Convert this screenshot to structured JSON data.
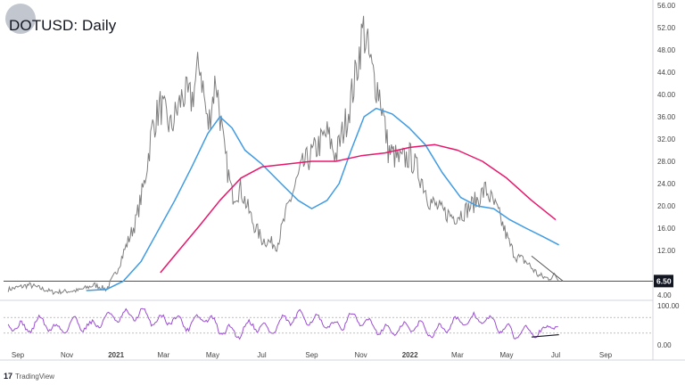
{
  "header": {
    "title": "DOTUSD: Daily"
  },
  "footer": {
    "brand": "TradingView",
    "brand_icon": "tradingview-logo-icon"
  },
  "colors": {
    "price": "#7f7f7f",
    "sma_fast": "#3f9be4",
    "sma_slow": "#e8176b",
    "rsi": "#9c4fd3",
    "trendline": "#555555",
    "current_price_badge": "#131722"
  },
  "chart_data": [
    {
      "type": "line",
      "title": "DOTUSD: Daily",
      "x_tick_labels": [
        "Sep",
        "Nov",
        "2021",
        "Mar",
        "May",
        "Jul",
        "Sep",
        "Nov",
        "2022",
        "Mar",
        "May",
        "Jul",
        "Sep"
      ],
      "y_tick_labels": [
        "4.00",
        "8.00",
        "12.00",
        "16.00",
        "20.00",
        "24.00",
        "28.00",
        "32.00",
        "36.00",
        "40.00",
        "44.00",
        "48.00",
        "52.00",
        "56.00"
      ],
      "ylim": [
        4,
        56
      ],
      "grid": false,
      "current_price_label": "6.50",
      "horizontal_line": 6.5,
      "series": [
        {
          "name": "",
          "x": [
            "2020-08-20",
            "2020-09-15",
            "2020-10-15",
            "2020-11-15",
            "2020-12-05",
            "2020-12-20",
            "2021-01-01",
            "2021-01-10",
            "2021-01-25",
            "2021-02-05",
            "2021-02-15",
            "2021-02-25",
            "2021-03-10",
            "2021-03-25",
            "2021-04-05",
            "2021-04-15",
            "2021-04-25",
            "2021-05-05",
            "2021-05-15",
            "2021-05-25",
            "2021-06-05",
            "2021-06-20",
            "2021-07-01",
            "2021-07-20",
            "2021-08-05",
            "2021-08-20",
            "2021-09-05",
            "2021-09-20",
            "2021-10-01",
            "2021-10-15",
            "2021-10-25",
            "2021-11-04",
            "2021-11-15",
            "2021-11-25",
            "2021-12-05",
            "2021-12-20",
            "2022-01-01",
            "2022-01-15",
            "2022-01-25",
            "2022-02-10",
            "2022-02-25",
            "2022-03-10",
            "2022-03-25",
            "2022-04-05",
            "2022-04-20",
            "2022-05-05",
            "2022-05-12",
            "2022-05-25",
            "2022-06-10",
            "2022-06-20",
            "2022-07-01",
            "2022-07-05"
          ],
          "values": [
            5.0,
            5.8,
            4.5,
            4.8,
            5.8,
            5.0,
            8.0,
            11.5,
            17.0,
            24.0,
            34.0,
            38.0,
            34.0,
            40.0,
            39.0,
            46.0,
            34.0,
            43.0,
            30.0,
            22.0,
            23.0,
            17.0,
            14.0,
            13.0,
            21.0,
            27.0,
            30.0,
            33.0,
            29.0,
            36.0,
            43.0,
            52.0,
            44.0,
            40.0,
            30.0,
            28.0,
            29.0,
            25.0,
            21.0,
            19.0,
            18.0,
            19.0,
            21.0,
            23.0,
            19.0,
            13.0,
            11.0,
            10.0,
            7.5,
            7.0,
            7.5,
            6.5
          ]
        },
        {
          "name": "",
          "x": [
            "2020-11-25",
            "2020-12-20",
            "2021-01-10",
            "2021-02-01",
            "2021-02-20",
            "2021-03-15",
            "2021-04-05",
            "2021-04-25",
            "2021-05-10",
            "2021-05-25",
            "2021-06-10",
            "2021-07-01",
            "2021-07-25",
            "2021-08-15",
            "2021-09-01",
            "2021-09-20",
            "2021-10-05",
            "2021-10-20",
            "2021-11-05",
            "2021-11-20",
            "2021-12-10",
            "2021-12-31",
            "2022-01-20",
            "2022-02-10",
            "2022-03-05",
            "2022-03-25",
            "2022-04-15",
            "2022-05-05",
            "2022-05-25",
            "2022-06-15",
            "2022-07-05"
          ],
          "values": [
            4.8,
            5.0,
            6.5,
            10.0,
            15.0,
            21.0,
            27.0,
            33.0,
            36.0,
            34.0,
            30.0,
            27.5,
            24.0,
            21.0,
            19.5,
            21.0,
            24.0,
            30.0,
            36.0,
            37.5,
            36.5,
            34.0,
            31.0,
            26.0,
            21.5,
            20.0,
            19.5,
            17.5,
            16.0,
            14.5,
            13.0
          ]
        },
        {
          "name": "",
          "x": [
            "2021-02-25",
            "2021-03-20",
            "2021-04-15",
            "2021-05-10",
            "2021-06-05",
            "2021-07-01",
            "2021-08-01",
            "2021-09-01",
            "2021-10-01",
            "2021-11-01",
            "2021-12-01",
            "2022-01-01",
            "2022-02-01",
            "2022-03-01",
            "2022-04-01",
            "2022-05-01",
            "2022-06-01",
            "2022-07-01"
          ],
          "values": [
            8.0,
            12.0,
            16.5,
            21.0,
            25.0,
            27.0,
            27.5,
            28.0,
            28.0,
            29.0,
            29.5,
            30.5,
            31.0,
            30.0,
            28.0,
            25.0,
            21.0,
            17.5
          ]
        },
        {
          "name": "",
          "x": [
            "2022-06-01",
            "2022-07-10"
          ],
          "values": [
            11.0,
            6.5
          ]
        },
        {
          "name": "",
          "x": [
            "2020-08-15",
            "2022-07-10"
          ],
          "values": [
            6.5,
            6.5
          ]
        }
      ]
    },
    {
      "type": "line",
      "title": "",
      "x_tick_labels": [
        "Sep",
        "Nov",
        "2021",
        "Mar",
        "May",
        "Jul",
        "Sep",
        "Nov",
        "2022",
        "Mar",
        "May",
        "Jul",
        "Sep"
      ],
      "y_tick_labels": [
        "0.00",
        "100.00"
      ],
      "ylim": [
        0,
        100
      ],
      "reference_lines": [
        70,
        30
      ],
      "series": [
        {
          "name": "",
          "x": [
            "2020-08-20",
            "2020-09-10",
            "2020-10-01",
            "2020-10-20",
            "2020-11-10",
            "2020-12-01",
            "2020-12-20",
            "2021-01-10",
            "2021-02-01",
            "2021-02-20",
            "2021-03-10",
            "2021-04-01",
            "2021-04-20",
            "2021-05-10",
            "2021-06-01",
            "2021-06-20",
            "2021-07-10",
            "2021-08-01",
            "2021-08-20",
            "2021-09-10",
            "2021-10-01",
            "2021-10-20",
            "2021-11-10",
            "2021-12-01",
            "2021-12-20",
            "2022-01-10",
            "2022-02-01",
            "2022-02-20",
            "2022-03-10",
            "2022-04-01",
            "2022-04-20",
            "2022-05-10",
            "2022-06-01",
            "2022-06-15",
            "2022-06-25",
            "2022-07-05"
          ],
          "values": [
            55,
            40,
            62,
            35,
            58,
            45,
            70,
            72,
            80,
            60,
            68,
            50,
            75,
            40,
            30,
            55,
            35,
            65,
            72,
            60,
            45,
            70,
            55,
            35,
            40,
            50,
            30,
            55,
            60,
            68,
            50,
            28,
            40,
            25,
            60,
            38
          ]
        },
        {
          "name": "",
          "x": [
            "2022-06-01",
            "2022-07-05"
          ],
          "values": [
            20,
            26
          ]
        }
      ]
    }
  ]
}
